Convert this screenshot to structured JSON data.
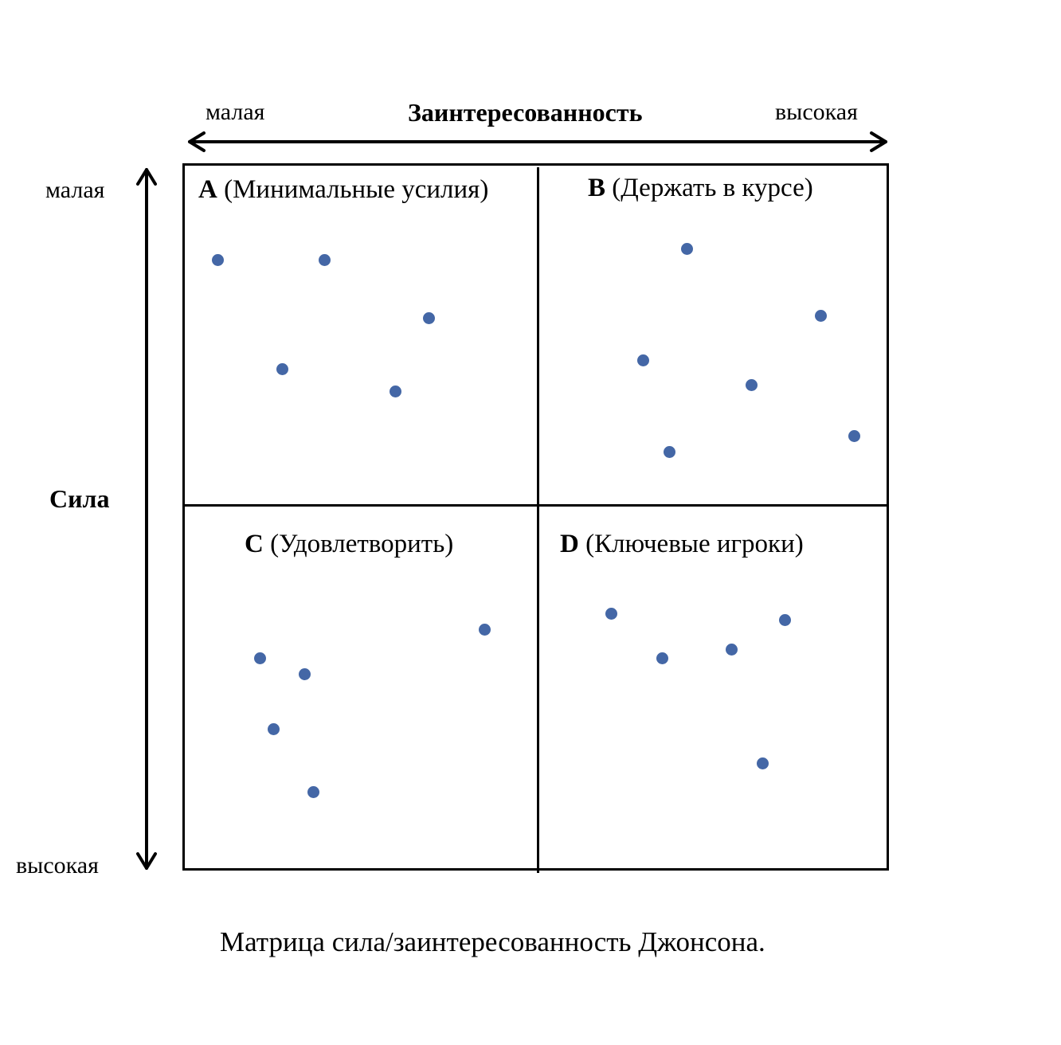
{
  "x_axis": {
    "low_label": "малая",
    "title": "Заинтересованность",
    "high_label": "высокая"
  },
  "y_axis": {
    "low_label": "малая",
    "title": "Сила",
    "high_label": "высокая"
  },
  "quadrants": [
    {
      "letter": "A",
      "name": "(Минимальные усилия)",
      "point_count": 5
    },
    {
      "letter": "B",
      "name": "(Держать в курсе)",
      "point_count": 6
    },
    {
      "letter": "C",
      "name": "(Удовлетворить)",
      "point_count": 5
    },
    {
      "letter": "D",
      "name": "(Ключевые игроки)",
      "point_count": 5
    }
  ],
  "caption": "Матрица сила/заинтересованность Джонсона.",
  "colors": {
    "dot": "#4467a6",
    "line": "#000000"
  }
}
